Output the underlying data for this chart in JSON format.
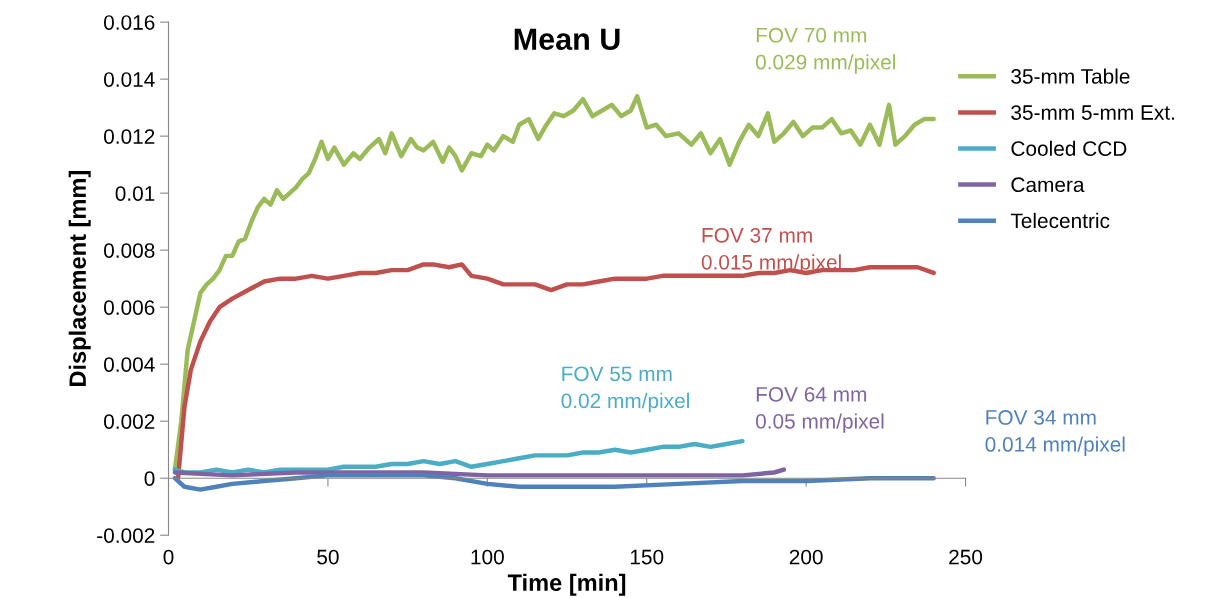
{
  "chart_data": {
    "type": "line",
    "title": "Mean U",
    "xlabel": "Time [min]",
    "ylabel": "Displacement [mm]",
    "xlim": [
      0,
      250
    ],
    "xticks": [
      0,
      50,
      100,
      150,
      200,
      250
    ],
    "ylim": [
      -0.002,
      0.016
    ],
    "yticks": [
      -0.002,
      0,
      0.002,
      0.004,
      0.006,
      0.008,
      0.01,
      0.012,
      0.014,
      0.016
    ],
    "legend": "right",
    "marker": "none",
    "line_style": "solid",
    "series": [
      {
        "name": "35-mm Table",
        "color": "#9bbb59",
        "x": [
          2,
          4,
          6,
          8,
          10,
          12,
          14,
          16,
          18,
          20,
          22,
          24,
          26,
          28,
          30,
          32,
          34,
          36,
          38,
          40,
          42,
          44,
          46,
          48,
          50,
          52,
          55,
          58,
          60,
          63,
          66,
          68,
          70,
          73,
          76,
          78,
          80,
          83,
          86,
          88,
          90,
          92,
          95,
          98,
          100,
          102,
          105,
          108,
          110,
          113,
          116,
          118,
          121,
          124,
          127,
          130,
          133,
          136,
          139,
          142,
          145,
          147,
          150,
          153,
          156,
          160,
          164,
          167,
          170,
          173,
          176,
          179,
          182,
          185,
          188,
          190,
          193,
          196,
          199,
          202,
          205,
          208,
          211,
          214,
          217,
          220,
          223,
          226,
          228,
          231,
          234,
          237,
          240
        ],
        "values": [
          0.0003,
          0.002,
          0.0045,
          0.0055,
          0.0065,
          0.0068,
          0.007,
          0.0073,
          0.0078,
          0.0078,
          0.0083,
          0.0084,
          0.009,
          0.0095,
          0.0098,
          0.0096,
          0.0101,
          0.0098,
          0.01,
          0.0102,
          0.0105,
          0.0107,
          0.0112,
          0.0118,
          0.0112,
          0.0116,
          0.011,
          0.0114,
          0.0112,
          0.0116,
          0.0119,
          0.0114,
          0.0121,
          0.0113,
          0.0119,
          0.0116,
          0.0115,
          0.0118,
          0.0111,
          0.0116,
          0.0113,
          0.0108,
          0.0114,
          0.0113,
          0.0117,
          0.0115,
          0.012,
          0.0118,
          0.0124,
          0.0126,
          0.0119,
          0.0123,
          0.0128,
          0.0127,
          0.0129,
          0.0133,
          0.0127,
          0.0129,
          0.0131,
          0.0127,
          0.0129,
          0.0134,
          0.0123,
          0.0124,
          0.012,
          0.0121,
          0.0117,
          0.0121,
          0.0114,
          0.0119,
          0.011,
          0.0118,
          0.0124,
          0.012,
          0.0128,
          0.0118,
          0.0121,
          0.0125,
          0.012,
          0.0123,
          0.0123,
          0.0126,
          0.0121,
          0.0122,
          0.0117,
          0.0124,
          0.0117,
          0.0131,
          0.0117,
          0.012,
          0.0124,
          0.0126,
          0.0126
        ]
      },
      {
        "name": "35-mm 5-mm Ext.",
        "color": "#c0504d",
        "x": [
          3,
          5,
          7,
          10,
          13,
          16,
          20,
          25,
          30,
          35,
          40,
          45,
          50,
          55,
          60,
          65,
          70,
          75,
          80,
          83,
          88,
          92,
          95,
          100,
          105,
          110,
          115,
          120,
          125,
          130,
          135,
          140,
          145,
          150,
          155,
          160,
          165,
          170,
          175,
          180,
          185,
          190,
          195,
          200,
          205,
          210,
          215,
          220,
          225,
          230,
          235,
          240
        ],
        "values": [
          0.0,
          0.0025,
          0.0038,
          0.0048,
          0.0055,
          0.006,
          0.0063,
          0.0066,
          0.0069,
          0.007,
          0.007,
          0.0071,
          0.007,
          0.0071,
          0.0072,
          0.0072,
          0.0073,
          0.0073,
          0.0075,
          0.0075,
          0.0074,
          0.0075,
          0.0071,
          0.007,
          0.0068,
          0.0068,
          0.0068,
          0.0066,
          0.0068,
          0.0068,
          0.0069,
          0.007,
          0.007,
          0.007,
          0.0071,
          0.0071,
          0.0071,
          0.0071,
          0.0071,
          0.0071,
          0.0072,
          0.0072,
          0.0073,
          0.0072,
          0.0073,
          0.0073,
          0.0073,
          0.0074,
          0.0074,
          0.0074,
          0.0074,
          0.0072
        ]
      },
      {
        "name": "Cooled CCD",
        "color": "#4bacc6",
        "x": [
          2,
          5,
          10,
          15,
          20,
          25,
          30,
          35,
          40,
          45,
          50,
          55,
          60,
          65,
          70,
          75,
          80,
          85,
          90,
          95,
          100,
          105,
          110,
          115,
          120,
          125,
          130,
          135,
          140,
          145,
          150,
          155,
          160,
          165,
          170,
          175,
          180
        ],
        "values": [
          0.0003,
          0.0002,
          0.0002,
          0.0003,
          0.0002,
          0.0003,
          0.0002,
          0.0003,
          0.0003,
          0.0003,
          0.0003,
          0.0004,
          0.0004,
          0.0004,
          0.0005,
          0.0005,
          0.0006,
          0.0005,
          0.0006,
          0.0004,
          0.0005,
          0.0006,
          0.0007,
          0.0008,
          0.0008,
          0.0008,
          0.0009,
          0.0009,
          0.001,
          0.0009,
          0.001,
          0.0011,
          0.0011,
          0.0012,
          0.0011,
          0.0012,
          0.0013
        ]
      },
      {
        "name": "Camera",
        "color": "#8064a2",
        "x": [
          2,
          20,
          40,
          60,
          80,
          100,
          120,
          140,
          160,
          180,
          190,
          193
        ],
        "values": [
          0.0002,
          0.0001,
          0.0002,
          0.0002,
          0.0002,
          0.0001,
          0.0001,
          0.0001,
          0.0001,
          0.0001,
          0.0002,
          0.0003
        ]
      },
      {
        "name": "Telecentric",
        "color": "#4f81bd",
        "x": [
          2,
          5,
          10,
          15,
          20,
          30,
          40,
          50,
          60,
          70,
          80,
          90,
          100,
          110,
          120,
          140,
          160,
          180,
          200,
          220,
          240
        ],
        "values": [
          0.0,
          -0.0003,
          -0.0004,
          -0.0003,
          -0.0002,
          -0.0001,
          0.0,
          0.0001,
          0.0001,
          0.0001,
          0.0001,
          0.0,
          -0.0002,
          -0.0003,
          -0.0003,
          -0.0003,
          -0.0002,
          -0.0001,
          -0.0001,
          0.0,
          0.0
        ]
      }
    ],
    "annotations": [
      "FOV 70 mm\n0.029 mm/pixel",
      "FOV 37 mm\n0.015 mm/pixel",
      "FOV 55 mm\n0.02 mm/pixel",
      "FOV 64 mm\n0.05 mm/pixel",
      "FOV 34 mm\n0.014 mm/pixel"
    ]
  }
}
